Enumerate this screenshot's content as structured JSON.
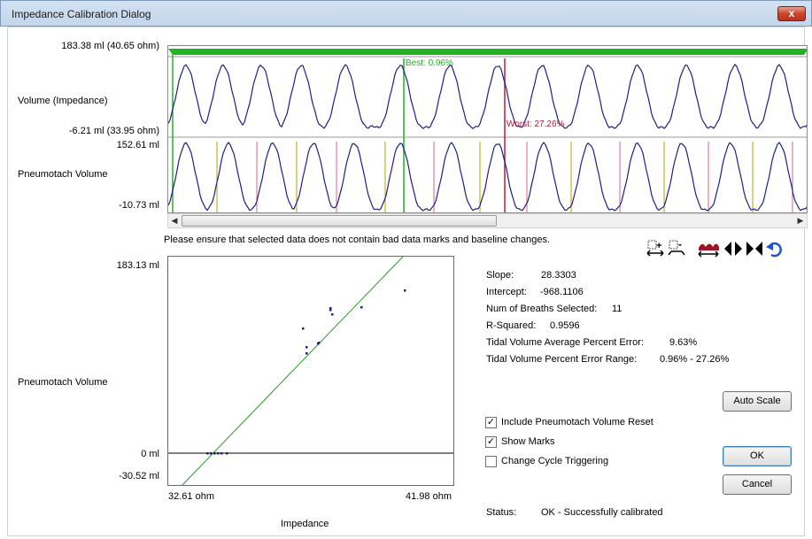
{
  "window": {
    "title": "Impedance Calibration Dialog",
    "close_glyph": "x"
  },
  "waveform": {
    "top_max": "183.38 ml (40.65 ohm)",
    "top_label": "Volume (Impedance)",
    "top_min": "-6.21 ml (33.95 ohm)",
    "bottom_max": "152.61 ml",
    "bottom_label": "Pneumotach Volume",
    "bottom_min": "-10.73 ml",
    "best_label": "Best: 0.96%",
    "worst_label": "Worst: 27.26%"
  },
  "notice": "Please ensure that selected data does not contain bad data marks and baseline changes.",
  "toolbar": {
    "icons": [
      "zoom-in-horizontal-icon",
      "zoom-out-horizontal-icon",
      "fit-red-icon",
      "expand-icon",
      "collapse-icon",
      "undo-icon"
    ]
  },
  "scatter": {
    "y_max": "183.13 ml",
    "y_label": "Pneumotach Volume",
    "y_zero": "0 ml",
    "y_min": "-30.52 ml",
    "x_min": "32.61 ohm",
    "x_max": "41.98 ohm",
    "x_label": "Impedance"
  },
  "stats": {
    "slope_label": "Slope:",
    "slope_value": "28.3303",
    "intercept_label": "Intercept:",
    "intercept_value": "-968.1106",
    "breaths_label": "Num of Breaths Selected:",
    "breaths_value": "11",
    "r2_label": "R-Squared:",
    "r2_value": "0.9596",
    "avg_error_label": "Tidal Volume Average Percent Error:",
    "avg_error_value": "9.63%",
    "range_label": "Tidal Volume Percent Error Range:",
    "range_value": "0.96% - 27.26%"
  },
  "options": {
    "include_reset": "Include Pneumotach Volume Reset",
    "show_marks": "Show Marks",
    "change_cycle": "Change Cycle Triggering",
    "include_reset_checked": true,
    "show_marks_checked": true,
    "change_cycle_checked": false
  },
  "buttons": {
    "auto_scale": "Auto Scale",
    "ok": "OK",
    "cancel": "Cancel"
  },
  "status": {
    "label": "Status:",
    "value": "OK - Successfully calibrated"
  },
  "colors": {
    "wave": "#1f1f86",
    "green": "#21b321",
    "red": "#b2203a",
    "fit_line": "#2a9a2a"
  }
}
